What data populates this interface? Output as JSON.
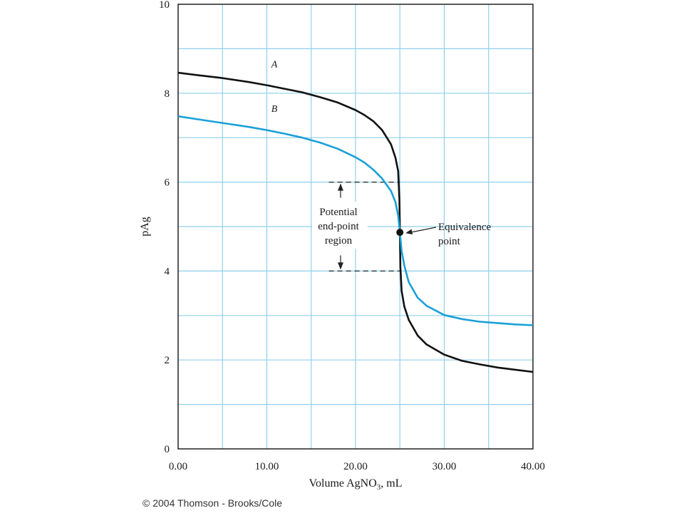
{
  "chart_data": {
    "type": "line",
    "xlabel_main": "Volume AgNO",
    "xlabel_sub": "3",
    "xlabel_tail": ", mL",
    "ylabel": "pAg",
    "xlim": [
      0,
      40
    ],
    "ylim": [
      0,
      10
    ],
    "x_ticks": [
      0,
      10,
      20,
      30,
      40
    ],
    "x_tick_labels": [
      "0.00",
      "10.00",
      "20.00",
      "30.00",
      "40.00"
    ],
    "y_ticks": [
      0,
      2,
      4,
      6,
      8,
      10
    ],
    "y_tick_labels": [
      "0",
      "2",
      "4",
      "6",
      "8",
      "10"
    ],
    "grid": true,
    "grid_x_step": 5,
    "grid_y_step": 1,
    "series": [
      {
        "name": "A",
        "color": "#111111",
        "x": [
          0,
          2,
          5,
          8,
          10,
          12,
          14,
          16,
          18,
          20,
          21,
          22,
          23,
          24,
          24.5,
          24.8,
          24.95,
          25,
          25.05,
          25.2,
          25.5,
          26,
          27,
          28,
          30,
          32,
          34,
          36,
          38,
          40
        ],
        "y": [
          8.46,
          8.41,
          8.34,
          8.25,
          8.18,
          8.1,
          8.02,
          7.91,
          7.79,
          7.62,
          7.51,
          7.37,
          7.17,
          6.85,
          6.55,
          6.25,
          5.6,
          4.87,
          4.1,
          3.55,
          3.2,
          2.9,
          2.55,
          2.35,
          2.12,
          1.98,
          1.9,
          1.83,
          1.78,
          1.73
        ]
      },
      {
        "name": "B",
        "color": "#1aa0d8",
        "x": [
          0,
          2,
          5,
          8,
          10,
          12,
          14,
          16,
          18,
          20,
          21,
          22,
          23,
          24,
          24.5,
          24.8,
          25,
          25.2,
          25.5,
          26,
          27,
          28,
          30,
          32,
          34,
          36,
          38,
          40
        ],
        "y": [
          7.48,
          7.42,
          7.33,
          7.24,
          7.17,
          7.09,
          7.0,
          6.89,
          6.75,
          6.56,
          6.44,
          6.28,
          6.08,
          5.8,
          5.55,
          5.25,
          4.87,
          4.45,
          4.12,
          3.75,
          3.4,
          3.22,
          3.01,
          2.92,
          2.86,
          2.83,
          2.8,
          2.78
        ]
      }
    ],
    "curve_labels": [
      {
        "text": "A",
        "x": 10.5,
        "y": 8.45
      },
      {
        "text": "B",
        "x": 10.5,
        "y": 7.45
      }
    ],
    "equivalence_point": {
      "x": 25,
      "y": 4.87
    },
    "equivalence_label": [
      "Equivalence",
      "point"
    ],
    "end_point_region": {
      "y_top": 6,
      "y_bottom": 4,
      "x_from": 17,
      "x_to": 25
    },
    "end_point_label": [
      "Potential",
      "end-point",
      "region"
    ]
  },
  "footer": {
    "copyright": "© 2004 Thomson - Brooks/Cole"
  }
}
